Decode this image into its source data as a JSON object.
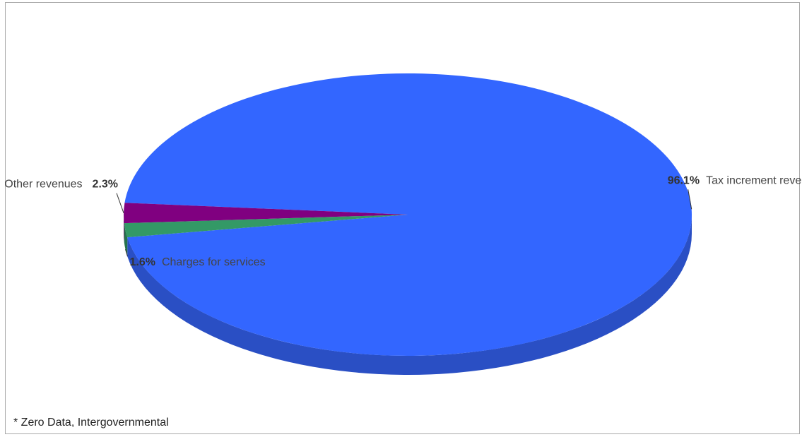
{
  "chart_data": {
    "type": "pie",
    "style": "3d",
    "slices": [
      {
        "label": "Tax increment revenue",
        "value": 96.1,
        "value_label": "96.1%",
        "color": "#3366ff"
      },
      {
        "label": "Charges for services",
        "value": 1.6,
        "value_label": "1.6%",
        "color": "#339966"
      },
      {
        "label": "Other revenues",
        "value": 2.3,
        "value_label": "2.3%",
        "color": "#800080"
      }
    ],
    "footnote": "* Zero Data, Intergovernmental"
  },
  "colors": {
    "tax_side": "#2a4fc4",
    "charges_side": "#26734d",
    "other_side": "#5c005c",
    "leader": "#333333"
  }
}
